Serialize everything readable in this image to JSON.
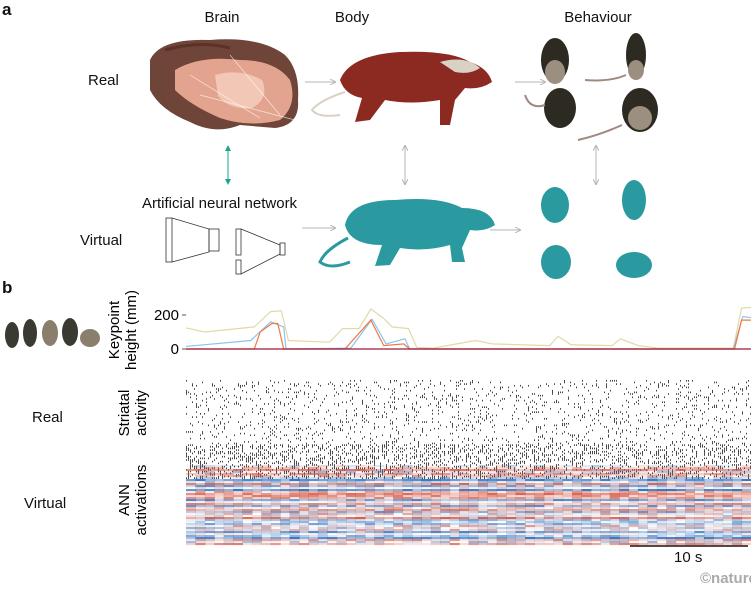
{
  "panels": {
    "a": "a",
    "b": "b"
  },
  "columns": {
    "brain": "Brain",
    "body": "Body",
    "behaviour": "Behaviour"
  },
  "rows": {
    "real": "Real",
    "virtual": "Virtual"
  },
  "ann_label": "Artificial neural network",
  "panel_b": {
    "real": "Real",
    "virtual": "Virtual",
    "keypoint_ylabel": [
      "Keypoint",
      "height (mm)"
    ],
    "striatal_label": [
      "Striatal",
      "activity"
    ],
    "ann_label": [
      "ANN",
      "activations"
    ],
    "scale_bar": "10 s"
  },
  "credit": "©nature",
  "colors": {
    "teal_arrow": "#1aa58f",
    "gray_arrow": "#b5b5b5",
    "virtual_rat": "#2a9aa0",
    "real_body": "#8c2a22"
  },
  "chart_data": {
    "type": "line",
    "ylabel": "Keypoint height (mm)",
    "yticks": [
      0,
      200
    ],
    "ylim": [
      0,
      260
    ],
    "xlim": [
      0,
      48
    ],
    "series": [
      {
        "color": "#e2d9a6",
        "x": [
          0,
          1.6,
          5.8,
          7.2,
          8.1,
          8.7,
          12.2,
          13.3,
          14.7,
          15.7,
          16.8,
          17.5,
          18.9,
          19.6,
          21,
          24.6,
          26,
          30.9,
          31.6,
          32.7,
          36.2,
          36.9,
          38.4,
          40.1,
          46.5,
          47.2,
          48
        ],
        "y": [
          124,
          100,
          130,
          220,
          225,
          50,
          40,
          120,
          120,
          235,
          180,
          130,
          120,
          10,
          5,
          50,
          30,
          20,
          75,
          25,
          20,
          60,
          20,
          5,
          5,
          240,
          245
        ]
      },
      {
        "color": "#8cc4ec",
        "x": [
          0,
          5.5,
          7.2,
          8.3,
          8.5,
          14,
          15.8,
          17,
          18.6,
          19,
          46.5,
          47.3,
          48
        ],
        "y": [
          15,
          50,
          160,
          130,
          0,
          5,
          175,
          30,
          60,
          0,
          0,
          190,
          185
        ]
      },
      {
        "color": "#f07a45",
        "x": [
          0,
          5.8,
          6.3,
          7.3,
          7.8,
          8.3,
          13.5,
          15.7,
          16.8,
          18.5,
          19,
          46.6,
          47.2,
          48
        ],
        "y": [
          0,
          0,
          100,
          150,
          150,
          0,
          0,
          170,
          20,
          30,
          0,
          0,
          170,
          170
        ]
      },
      {
        "color": "#a0183a",
        "x": [
          0,
          48
        ],
        "y": [
          0,
          0
        ]
      }
    ]
  }
}
